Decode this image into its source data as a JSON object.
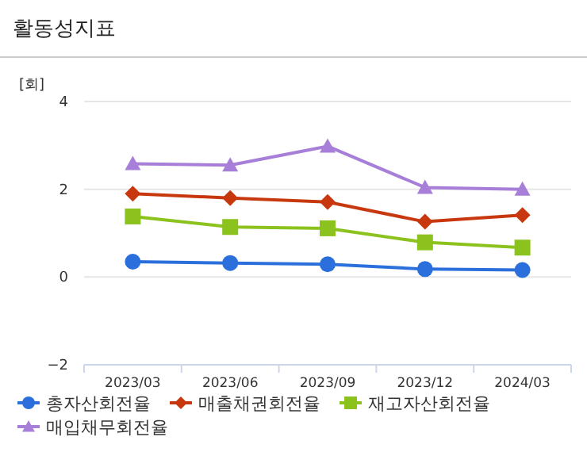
{
  "chart_data": {
    "type": "line",
    "title": "활동성지표",
    "ylabel": "[회]",
    "categories": [
      "2023/03",
      "2023/06",
      "2023/09",
      "2023/12",
      "2024/03"
    ],
    "ylim": [
      -2,
      4
    ],
    "yticks": [
      -2,
      0,
      2,
      4
    ],
    "grid": "y",
    "legend": "bottom",
    "series": [
      {
        "name": "총자산회전율",
        "color": "#2a6fdb",
        "marker": "circle",
        "values": [
          0.35,
          0.32,
          0.29,
          0.18,
          0.16
        ]
      },
      {
        "name": "매출채권회전율",
        "color": "#c8380e",
        "marker": "diamond",
        "values": [
          1.9,
          1.8,
          1.71,
          1.26,
          1.41
        ]
      },
      {
        "name": "재고자산회전율",
        "color": "#8cc21e",
        "marker": "square",
        "values": [
          1.38,
          1.14,
          1.11,
          0.79,
          0.67
        ]
      },
      {
        "name": "매입채무회전율",
        "color": "#a77fd8",
        "marker": "triangle",
        "values": [
          2.58,
          2.55,
          2.98,
          2.04,
          2.0
        ]
      }
    ]
  }
}
